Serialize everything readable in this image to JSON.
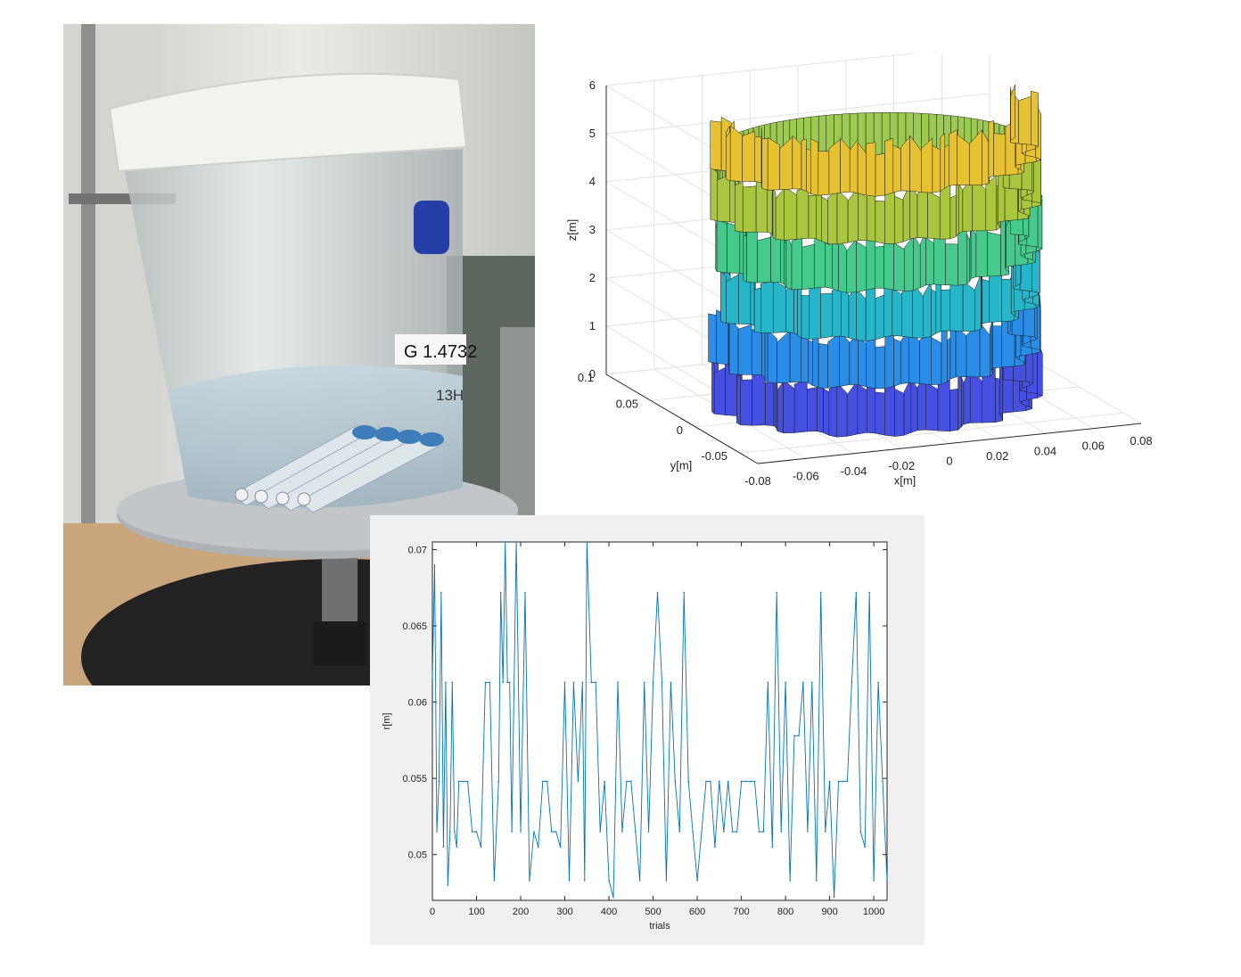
{
  "photo": {
    "label_text": "G 1.4732",
    "label_text2": "13H"
  },
  "chart_data": [
    {
      "type": "surface3d",
      "xlabel": "x[m]",
      "ylabel": "y[m]",
      "zlabel": "z[m]",
      "x_ticks": [
        "-0.08",
        "-0.06",
        "-0.04",
        "-0.02",
        "0",
        "0.02",
        "0.04",
        "0.06",
        "0.08"
      ],
      "y_ticks": [
        "-0.05",
        "0",
        "0.05",
        "0.1"
      ],
      "z_ticks": [
        "0",
        "1",
        "2",
        "3",
        "4",
        "5",
        "6"
      ],
      "xlim": [
        -0.08,
        0.08
      ],
      "ylim": [
        -0.07,
        0.1
      ],
      "zlim": [
        0,
        6
      ],
      "grid": true,
      "bands": [
        {
          "z_range": [
            0,
            1
          ],
          "color": "#4650e0"
        },
        {
          "z_range": [
            1,
            2
          ],
          "color": "#2a8de8"
        },
        {
          "z_range": [
            2,
            3
          ],
          "color": "#27b6c9"
        },
        {
          "z_range": [
            3,
            4
          ],
          "color": "#45c98d"
        },
        {
          "z_range": [
            4,
            5
          ],
          "color": "#a8c63e"
        },
        {
          "z_range": [
            5,
            6
          ],
          "color": "#e6c232"
        }
      ]
    },
    {
      "type": "line",
      "xlabel": "trials",
      "ylabel": "r[m]",
      "xlim": [
        0,
        1030
      ],
      "ylim": [
        0.047,
        0.0705
      ],
      "x_ticks": [
        0,
        100,
        200,
        300,
        400,
        500,
        600,
        700,
        800,
        900,
        1000
      ],
      "y_ticks": [
        "0.05",
        "0.055",
        "0.06",
        "0.065",
        "0.07"
      ],
      "series_color": "#0072bd",
      "series": [
        {
          "x": [
            0,
            5,
            10,
            15,
            20,
            25,
            30,
            35,
            40,
            45,
            50,
            55,
            60,
            70,
            80,
            90,
            100,
            110,
            120,
            130,
            140,
            150,
            155,
            160,
            165,
            170,
            175,
            180,
            190,
            200,
            210,
            220,
            230,
            240,
            250,
            260,
            270,
            280,
            290,
            300,
            310,
            320,
            330,
            340,
            345,
            350,
            360,
            370,
            380,
            390,
            400,
            410,
            420,
            430,
            440,
            450,
            460,
            470,
            480,
            490,
            500,
            510,
            520,
            530,
            540,
            550,
            560,
            570,
            580,
            590,
            600,
            610,
            620,
            630,
            640,
            650,
            660,
            670,
            680,
            690,
            700,
            710,
            720,
            730,
            740,
            750,
            760,
            770,
            780,
            790,
            800,
            810,
            820,
            830,
            840,
            850,
            860,
            870,
            880,
            890,
            900,
            910,
            920,
            930,
            940,
            950,
            960,
            970,
            980,
            990,
            1000,
            1010,
            1020,
            1030
          ],
          "y": [
            0.0615,
            0.069,
            0.0515,
            0.0548,
            0.0672,
            0.0505,
            0.0613,
            0.048,
            0.0515,
            0.0613,
            0.0515,
            0.0505,
            0.0548,
            0.0548,
            0.0548,
            0.0515,
            0.0515,
            0.0505,
            0.0613,
            0.0613,
            0.0483,
            0.0548,
            0.0672,
            0.0613,
            0.0705,
            0.0613,
            0.0613,
            0.0515,
            0.0705,
            0.0515,
            0.0672,
            0.0483,
            0.0515,
            0.0505,
            0.0548,
            0.0548,
            0.0515,
            0.0515,
            0.0505,
            0.0613,
            0.0483,
            0.0613,
            0.0548,
            0.0613,
            0.0483,
            0.0705,
            0.0613,
            0.0613,
            0.0515,
            0.0548,
            0.0483,
            0.0472,
            0.0613,
            0.0515,
            0.0548,
            0.0548,
            0.0515,
            0.0483,
            0.0613,
            0.0515,
            0.0613,
            0.0672,
            0.0613,
            0.0483,
            0.0613,
            0.0548,
            0.0515,
            0.0672,
            0.0548,
            0.0515,
            0.0483,
            0.0515,
            0.0548,
            0.0548,
            0.0505,
            0.0548,
            0.0515,
            0.0548,
            0.0515,
            0.0515,
            0.0548,
            0.0548,
            0.0548,
            0.0548,
            0.0515,
            0.0515,
            0.0613,
            0.0505,
            0.0672,
            0.0515,
            0.0613,
            0.0483,
            0.0578,
            0.0578,
            0.0613,
            0.0515,
            0.0613,
            0.0483,
            0.0672,
            0.0515,
            0.0548,
            0.0472,
            0.0548,
            0.0548,
            0.0548,
            0.0613,
            0.0672,
            0.0515,
            0.0505,
            0.0672,
            0.0483,
            0.0613,
            0.0548,
            0.0483
          ]
        }
      ]
    }
  ]
}
